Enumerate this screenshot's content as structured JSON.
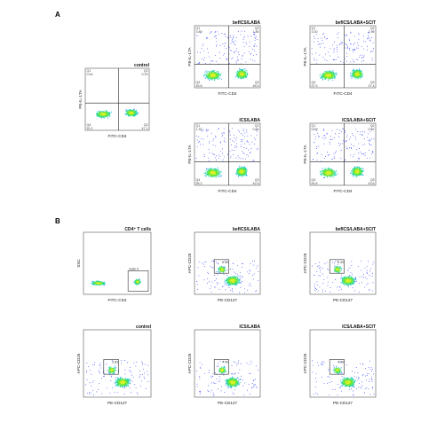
{
  "panels": [
    {
      "label": "A"
    },
    {
      "label": "B"
    }
  ],
  "chart_data": [
    {
      "type": "scatter",
      "title": "control",
      "xlabel": "FITC-CD4",
      "ylabel": "PE-IL-17A",
      "quadrants": [
        {
          "name": "Q1",
          "value": "0.44"
        },
        {
          "name": "Q2",
          "value": "0.29"
        },
        {
          "name": "Q3",
          "value": "47.1"
        },
        {
          "name": "Q4",
          "value": "52.2"
        }
      ]
    },
    {
      "type": "scatter",
      "title": "befICS/LABA",
      "xlabel": "FITC-CD4",
      "ylabel": "PE-IL-17A",
      "quadrants": [
        {
          "name": "Q1",
          "value": "3.89"
        },
        {
          "name": "Q2",
          "value": "1.85"
        },
        {
          "name": "Q3",
          "value": "48.5"
        },
        {
          "name": "Q4",
          "value": "45.8"
        }
      ]
    },
    {
      "type": "scatter",
      "title": "befICS/LABA+SCIT",
      "xlabel": "FITC-CD4",
      "ylabel": "PE-IL-17A",
      "quadrants": [
        {
          "name": "Q1",
          "value": "3.30"
        },
        {
          "name": "Q2",
          "value": "1.92"
        },
        {
          "name": "Q3",
          "value": "37.4"
        },
        {
          "name": "Q4",
          "value": "57.5"
        }
      ]
    },
    {
      "type": "scatter",
      "title": "ICS/LABA",
      "xlabel": "FITC-CD4",
      "ylabel": "PE-IL-17A",
      "quadrants": [
        {
          "name": "Q1",
          "value": "1.32"
        },
        {
          "name": "Q2",
          "value": "0.84"
        },
        {
          "name": "Q3",
          "value": "42.6"
        },
        {
          "name": "Q4",
          "value": "55.2"
        }
      ]
    },
    {
      "type": "scatter",
      "title": "ICS/LABA+SCIT",
      "xlabel": "FITC-CD4",
      "ylabel": "PE-IL-17A",
      "quadrants": [
        {
          "name": "Q1",
          "value": "0.99"
        },
        {
          "name": "Q2",
          "value": "0.62"
        },
        {
          "name": "Q3",
          "value": "43.6"
        },
        {
          "name": "Q4",
          "value": "54.8"
        }
      ]
    },
    {
      "type": "scatter",
      "title": "CD4⁺ T cells",
      "xlabel": "FITC-CD4",
      "ylabel": "SSC",
      "gate": {
        "name": "Gate 9",
        "value": ""
      }
    },
    {
      "type": "scatter",
      "title": "befICS/LABA",
      "xlabel": "PE-CD127",
      "ylabel": "APC-CD25",
      "gate": {
        "name": "",
        "value": "6.40"
      }
    },
    {
      "type": "scatter",
      "title": "befICS/LABA+SCIT",
      "xlabel": "PE-CD127",
      "ylabel": "APC-CD25",
      "gate": {
        "name": "",
        "value": "5.33"
      }
    },
    {
      "type": "scatter",
      "title": "control",
      "xlabel": "PE-CD127",
      "ylabel": "APC-CD25",
      "gate": {
        "name": "",
        "value": "3.63"
      }
    },
    {
      "type": "scatter",
      "title": "ICS/LABA",
      "xlabel": "PE-CD127",
      "ylabel": "APC-CD25",
      "gate": {
        "name": "",
        "value": "4.00"
      }
    },
    {
      "type": "scatter",
      "title": "ICS/LABA+SCIT",
      "xlabel": "PE-CD127",
      "ylabel": "APC-CD25",
      "gate": {
        "name": "",
        "value": "4.00"
      }
    }
  ]
}
